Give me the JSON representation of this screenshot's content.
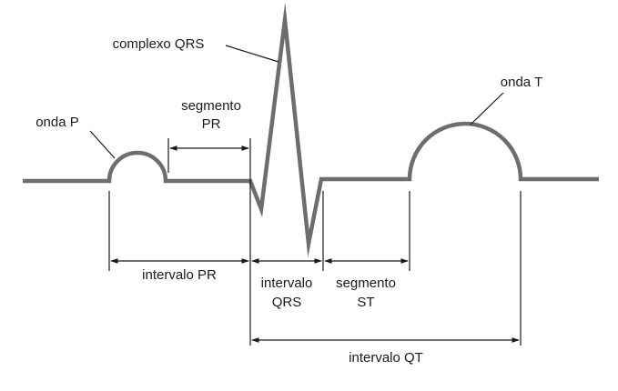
{
  "colors": {
    "waveform": "#6d6d6d",
    "lines": "#1a1a1a",
    "text": "#1a1a1a",
    "background": "#ffffff"
  },
  "labels": {
    "onda_p": "onda P",
    "complexo_qrs": "complexo QRS",
    "onda_t": "onda T",
    "segmento_pr_line1": "segmento",
    "segmento_pr_line2": "PR",
    "intervalo_pr": "intervalo PR",
    "intervalo_qrs_line1": "intervalo",
    "intervalo_qrs_line2": "QRS",
    "segmento_st_line1": "segmento",
    "segmento_st_line2": "ST",
    "intervalo_qt": "intervalo QT"
  }
}
